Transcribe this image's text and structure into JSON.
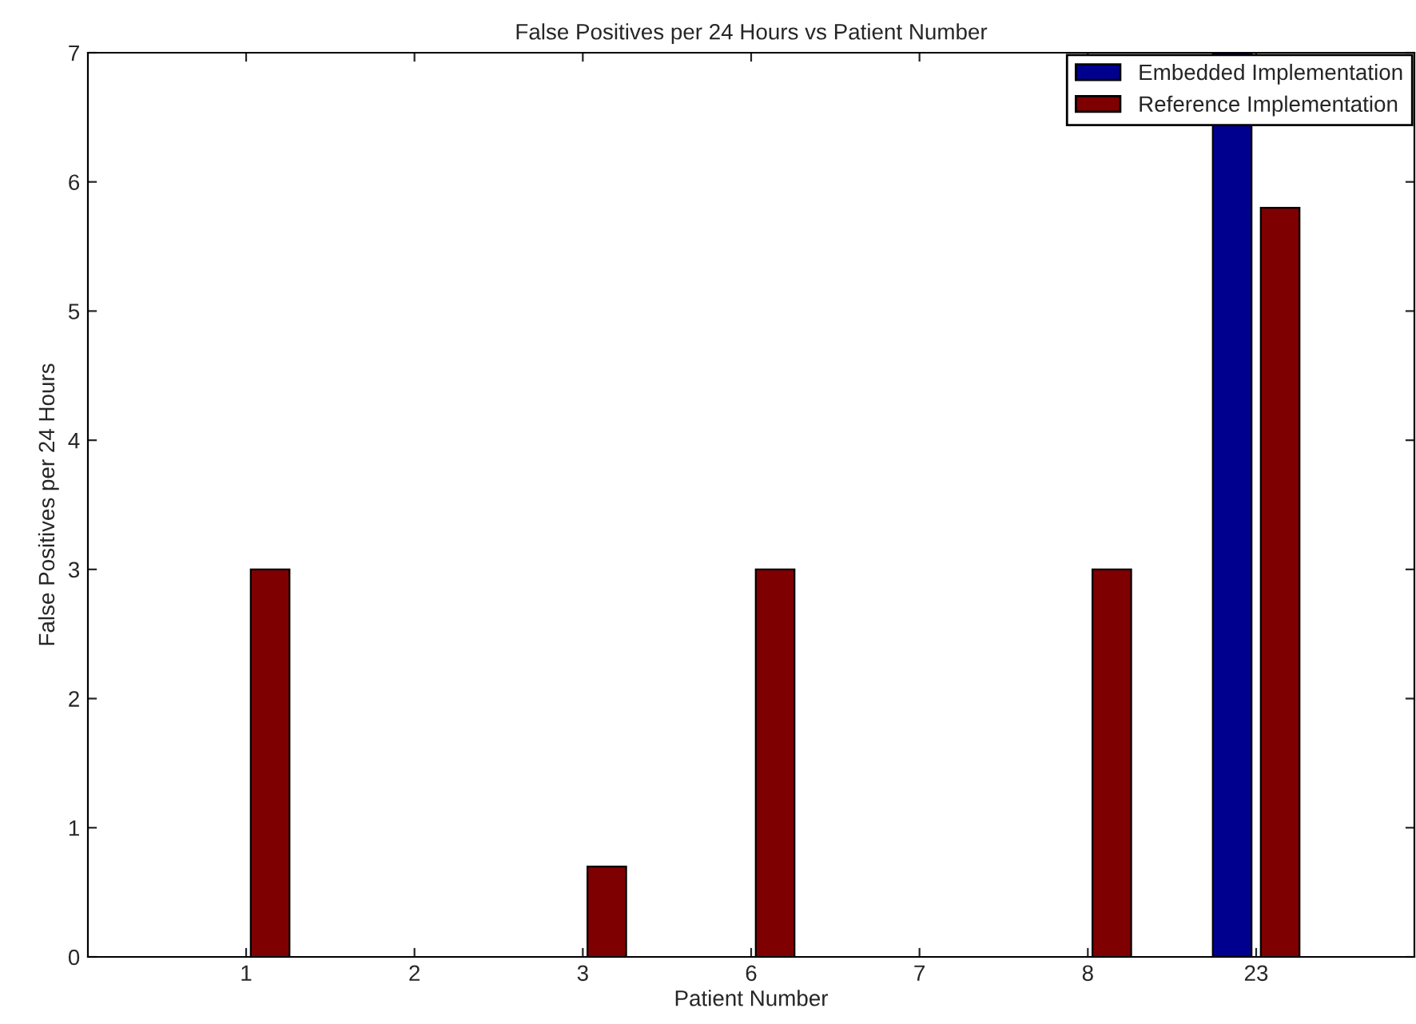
{
  "chart_data": {
    "type": "bar",
    "title": "False Positives per 24 Hours vs Patient Number",
    "xlabel": "Patient Number",
    "ylabel": "False Positives per 24 Hours",
    "categories": [
      "1",
      "2",
      "3",
      "6",
      "7",
      "8",
      "23"
    ],
    "series": [
      {
        "name": "Embedded Implementation",
        "color": "#00008f",
        "values": [
          0,
          0,
          0,
          0,
          0,
          0,
          7
        ]
      },
      {
        "name": "Reference Implementation",
        "color": "#7f0000",
        "values": [
          3,
          0,
          0.7,
          3,
          0,
          3,
          5.8
        ]
      }
    ],
    "ylim": [
      0,
      7
    ],
    "yticks": [
      0,
      1,
      2,
      3,
      4,
      5,
      6,
      7
    ],
    "legend": "top right"
  }
}
